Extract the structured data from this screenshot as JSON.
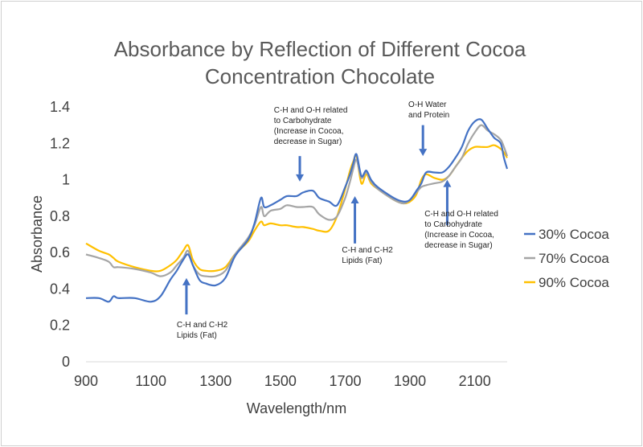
{
  "chart_data": {
    "type": "line",
    "title": [
      "Absorbance by Reflection of Different Cocoa",
      "Concentration Chocolate"
    ],
    "xlabel": "Wavelength/nm",
    "ylabel": "Absorbance",
    "xlim": [
      900,
      2200
    ],
    "ylim": [
      0,
      1.4
    ],
    "xticks": [
      "900",
      "1100",
      "1300",
      "1500",
      "1700",
      "1900",
      "2100"
    ],
    "yticks": [
      "0",
      "0.2",
      "0.4",
      "0.6",
      "0.8",
      "1",
      "1.2",
      "1.4"
    ],
    "grid": false,
    "legend": "right",
    "x": [
      900,
      940,
      970,
      985,
      1000,
      1050,
      1100,
      1130,
      1160,
      1180,
      1200,
      1215,
      1230,
      1250,
      1270,
      1300,
      1330,
      1360,
      1400,
      1420,
      1440,
      1450,
      1470,
      1500,
      1520,
      1550,
      1570,
      1600,
      1620,
      1650,
      1675,
      1700,
      1715,
      1725,
      1735,
      1750,
      1765,
      1780,
      1800,
      1850,
      1880,
      1900,
      1920,
      1935,
      1950,
      1975,
      2000,
      2020,
      2040,
      2060,
      2080,
      2100,
      2120,
      2140,
      2160,
      2180,
      2190,
      2200
    ],
    "series": [
      {
        "name": "30% Cocoa",
        "color": "#4472c4",
        "values": [
          0.35,
          0.35,
          0.33,
          0.36,
          0.35,
          0.35,
          0.33,
          0.36,
          0.45,
          0.5,
          0.56,
          0.59,
          0.53,
          0.45,
          0.43,
          0.42,
          0.46,
          0.58,
          0.67,
          0.76,
          0.9,
          0.85,
          0.86,
          0.89,
          0.91,
          0.91,
          0.93,
          0.94,
          0.9,
          0.88,
          0.86,
          0.96,
          1.03,
          1.09,
          1.14,
          1.02,
          1.05,
          1.0,
          0.96,
          0.9,
          0.88,
          0.89,
          0.94,
          0.98,
          1.04,
          1.04,
          1.04,
          1.07,
          1.12,
          1.18,
          1.27,
          1.32,
          1.33,
          1.28,
          1.23,
          1.2,
          1.12,
          1.06
        ]
      },
      {
        "name": "70% Cocoa",
        "color": "#a5a5a5",
        "values": [
          0.59,
          0.57,
          0.55,
          0.52,
          0.52,
          0.51,
          0.49,
          0.47,
          0.49,
          0.53,
          0.57,
          0.61,
          0.53,
          0.48,
          0.47,
          0.47,
          0.5,
          0.59,
          0.68,
          0.75,
          0.85,
          0.8,
          0.83,
          0.84,
          0.86,
          0.85,
          0.85,
          0.85,
          0.81,
          0.78,
          0.8,
          0.9,
          0.99,
          1.06,
          1.11,
          1.01,
          1.04,
          0.99,
          0.95,
          0.89,
          0.87,
          0.89,
          0.93,
          0.96,
          0.97,
          0.98,
          0.99,
          1.02,
          1.07,
          1.12,
          1.2,
          1.26,
          1.3,
          1.27,
          1.25,
          1.22,
          1.18,
          1.13
        ]
      },
      {
        "name": "90% Cocoa",
        "color": "#ffc000",
        "values": [
          0.65,
          0.61,
          0.59,
          0.57,
          0.55,
          0.52,
          0.5,
          0.5,
          0.53,
          0.56,
          0.61,
          0.64,
          0.56,
          0.51,
          0.5,
          0.5,
          0.52,
          0.59,
          0.66,
          0.72,
          0.77,
          0.75,
          0.76,
          0.75,
          0.75,
          0.74,
          0.74,
          0.73,
          0.72,
          0.72,
          0.8,
          0.95,
          1.05,
          1.1,
          1.13,
          0.98,
          1.03,
          0.98,
          0.95,
          0.89,
          0.87,
          0.88,
          0.92,
          1.0,
          1.03,
          1.01,
          1.0,
          1.02,
          1.07,
          1.12,
          1.16,
          1.18,
          1.18,
          1.18,
          1.19,
          1.17,
          1.15,
          1.12
        ]
      }
    ],
    "annotations": [
      {
        "lines": [
          "C-H and C-H2",
          "Lipids (Fat)"
        ],
        "arrow_x": 1210,
        "arrow_from": 0.26,
        "arrow_to": 0.46,
        "text_x": 1180,
        "text_y": 0.19
      },
      {
        "lines": [
          "C-H and O-H related",
          "to Carbohydrate",
          "(Increase in Cocoa,",
          "decrease in Sugar)"
        ],
        "arrow_x": 1560,
        "arrow_from": 1.13,
        "arrow_to": 0.99,
        "text_x": 1480,
        "text_y": 1.37
      },
      {
        "lines": [
          "C-H and C-H2",
          "Lipids (Fat)"
        ],
        "arrow_x": 1730,
        "arrow_from": 0.65,
        "arrow_to": 0.91,
        "text_x": 1690,
        "text_y": 0.6
      },
      {
        "lines": [
          "O-H Water",
          "and Protein"
        ],
        "arrow_x": 1940,
        "arrow_from": 1.3,
        "arrow_to": 1.13,
        "text_x": 1895,
        "text_y": 1.4
      },
      {
        "lines": [
          "C-H and O-H related",
          "to Carbohydrate",
          "(Increase in Cocoa,",
          "decrease in Sugar)"
        ],
        "arrow_x": 2015,
        "arrow_from": 0.75,
        "arrow_to": 1.0,
        "text_x": 1945,
        "text_y": 0.8
      }
    ]
  }
}
